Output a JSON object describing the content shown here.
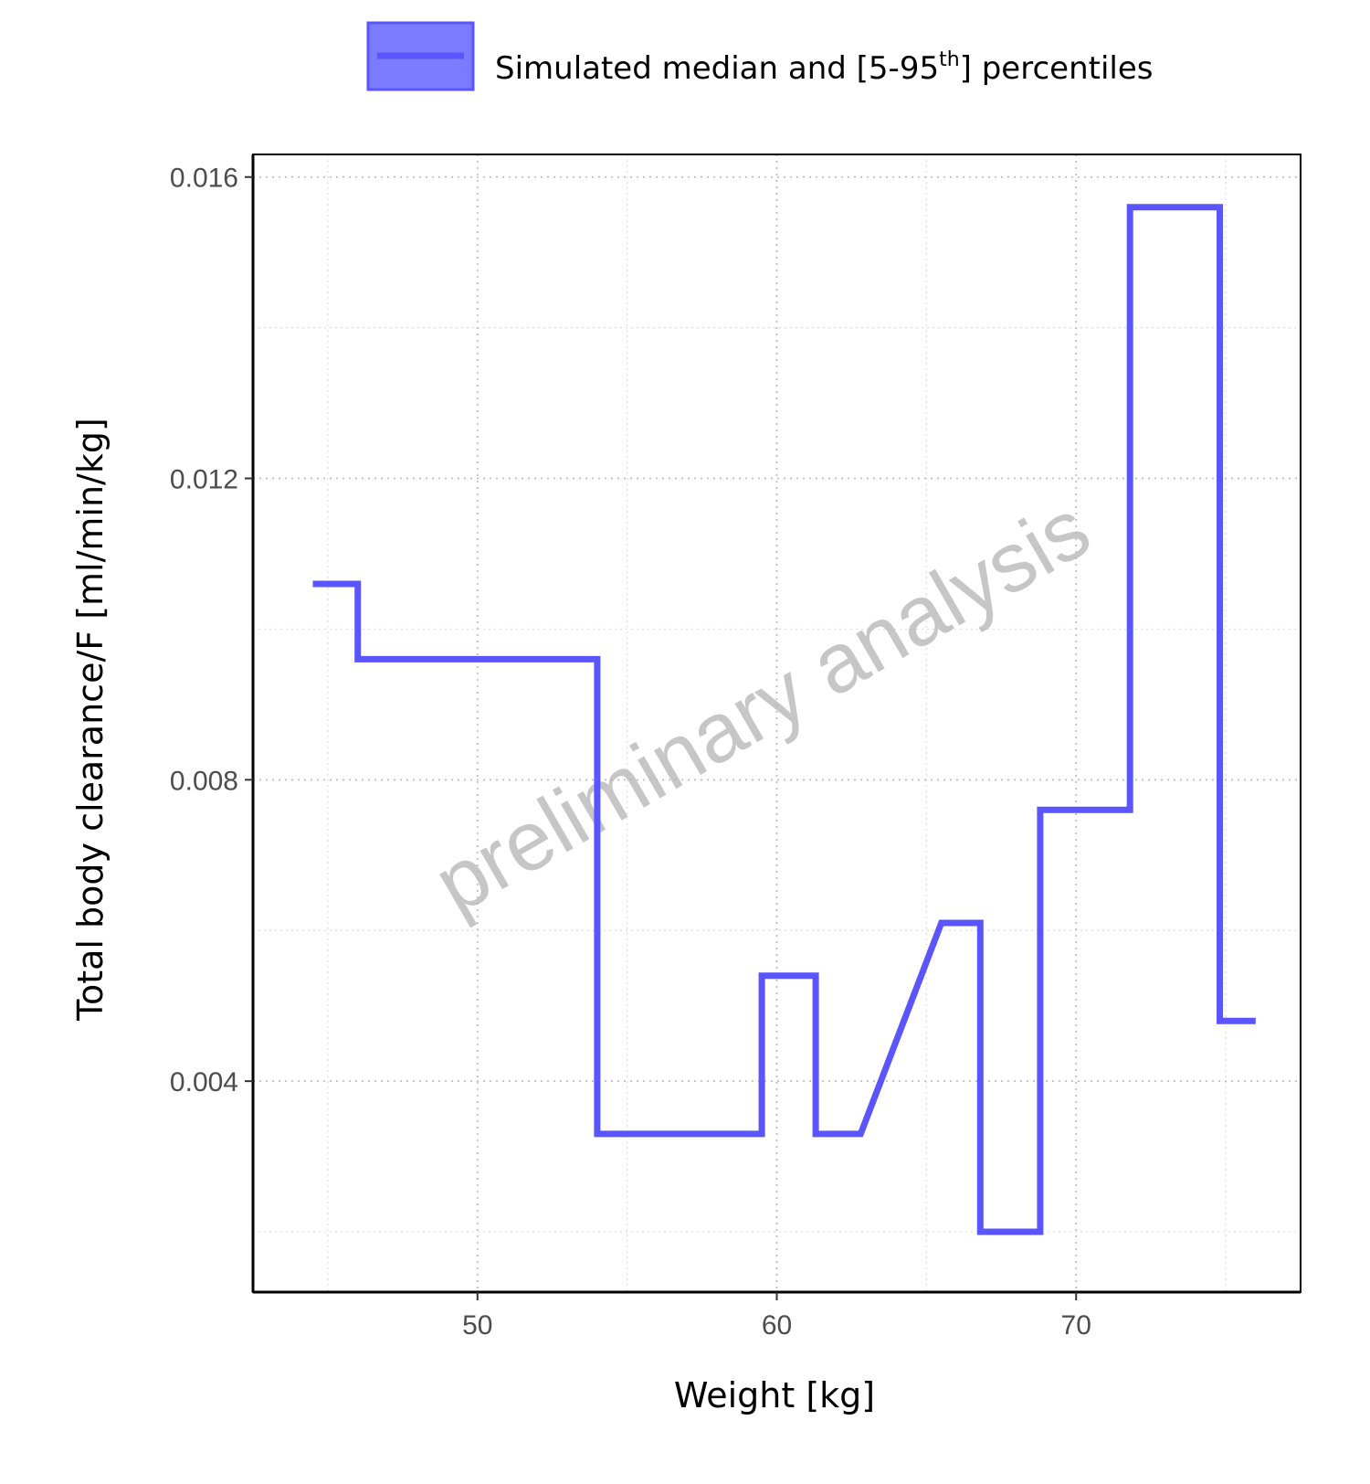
{
  "chart_data": {
    "type": "line",
    "xlabel": "Weight [kg]",
    "ylabel": "Total body clearance/F [ml/min/kg]",
    "xlim": [
      42.5,
      77.5
    ],
    "ylim": [
      0.0012,
      0.0163
    ],
    "x_ticks": [
      50,
      60,
      70
    ],
    "x_tick_labels": [
      "50",
      "60",
      "70"
    ],
    "x_minor_ticks": [
      45,
      55,
      65,
      75
    ],
    "y_ticks": [
      0.004,
      0.008,
      0.012,
      0.016
    ],
    "y_tick_labels": [
      "0.004",
      "0.008",
      "0.012",
      "0.016"
    ],
    "y_minor_ticks": [
      0.002,
      0.006,
      0.01,
      0.014
    ],
    "grid": true,
    "legend_position": "top",
    "legend": {
      "label_main": "Simulated median and [5-95",
      "label_sup": "th",
      "label_end": "] percentiles"
    },
    "watermark": "preliminary analysis",
    "colors": {
      "series": "#5a55ff",
      "legend_fill": "#7b7bff",
      "watermark": "#b3b3b3"
    },
    "series": [
      {
        "x": [
          44.5,
          46.0,
          46.0,
          54.0,
          54.0,
          59.5,
          59.5,
          61.3,
          61.3,
          62.8,
          65.5,
          66.8,
          66.8,
          68.8,
          68.8,
          71.8,
          71.8,
          74.8,
          74.8,
          76.0
        ],
        "y": [
          0.0106,
          0.0106,
          0.0096,
          0.0096,
          0.0033,
          0.0033,
          0.0054,
          0.0054,
          0.0033,
          0.0033,
          0.0061,
          0.0061,
          0.002,
          0.002,
          0.0076,
          0.0076,
          0.0156,
          0.0156,
          0.0048,
          0.0048
        ]
      }
    ]
  }
}
